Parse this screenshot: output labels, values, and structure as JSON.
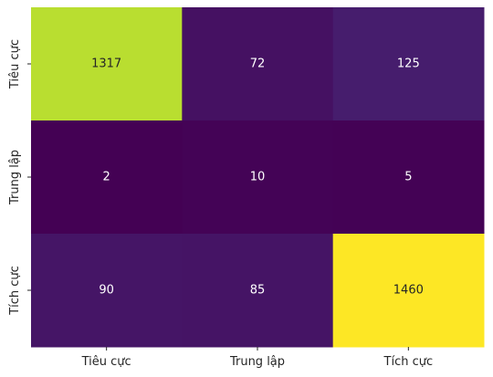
{
  "chart_data": {
    "type": "heatmap",
    "title": "",
    "xlabel": "",
    "ylabel": "",
    "x_categories": [
      "Tiêu cực",
      "Trung lập",
      "Tích cực"
    ],
    "y_categories": [
      "Tiêu cực",
      "Trung lập",
      "Tích cực"
    ],
    "values": [
      [
        1317,
        72,
        125
      ],
      [
        2,
        10,
        5
      ],
      [
        90,
        85,
        1460
      ]
    ],
    "colormap": "viridis",
    "value_range": [
      2,
      1460
    ],
    "annotations": true,
    "colorbar": false,
    "grid": false,
    "colors": {
      "annotation_on_dark": "#ffffff",
      "annotation_on_light": "#262626",
      "tick": "#262626"
    }
  }
}
